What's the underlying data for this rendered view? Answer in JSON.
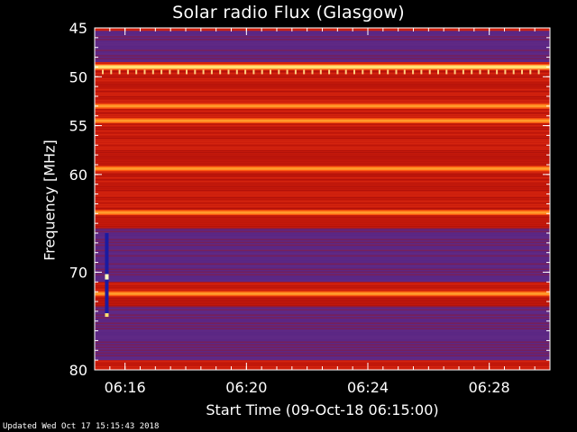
{
  "chart_data": {
    "type": "heatmap",
    "title": "Solar radio Flux (Glasgow)",
    "xlabel": "Start Time (09-Oct-18 06:15:00)",
    "ylabel": "Frequency [MHz]",
    "x_range_minutes": [
      "06:15:00",
      "06:30:00"
    ],
    "y_range_mhz": [
      45,
      80
    ],
    "y_axis_inverted": true,
    "x_ticks": [
      "06:16",
      "06:20",
      "06:24",
      "06:28"
    ],
    "x_tick_minutes": [
      1,
      5,
      9,
      13
    ],
    "y_ticks": [
      45,
      50,
      55,
      60,
      70,
      80
    ],
    "bright_bands_mhz": [
      49.0,
      53.0,
      54.5,
      59.4,
      63.9,
      72.2
    ],
    "blue_regions_mhz": [
      [
        45.3,
        48.5
      ],
      [
        65.5,
        71.0
      ],
      [
        73.5,
        79.0
      ]
    ],
    "burst": {
      "minute": 0.4,
      "mhz_range": [
        66.0,
        74.5
      ]
    },
    "colors": {
      "background": "#000000",
      "text": "#ffffff",
      "red": "#c81a0c",
      "blue": "#4a2a9a",
      "band": "#ff9a2a"
    }
  },
  "footer": "Updated Wed Oct 17 15:15:43 2018"
}
